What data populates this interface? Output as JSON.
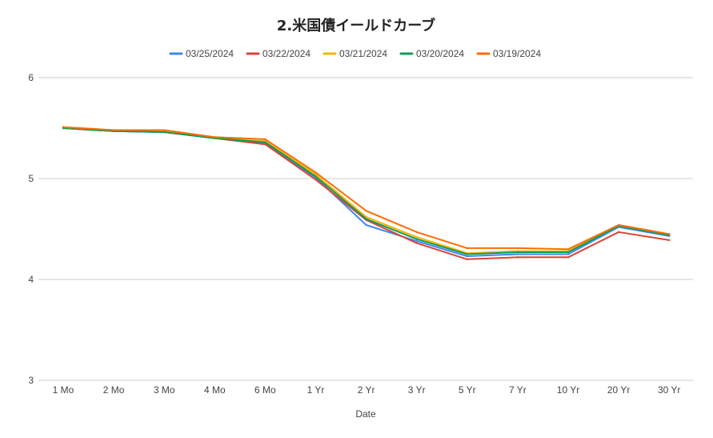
{
  "chart_data": {
    "type": "line",
    "title": "2.米国債イールドカーブ",
    "xlabel": "Date",
    "ylabel": "",
    "categories": [
      "1 Mo",
      "2 Mo",
      "3 Mo",
      "4 Mo",
      "6 Mo",
      "1 Yr",
      "2 Yr",
      "3 Yr",
      "5 Yr",
      "7 Yr",
      "10 Yr",
      "20 Yr",
      "30 Yr"
    ],
    "ylim": [
      3,
      6
    ],
    "yticks": [
      "3",
      "4",
      "5",
      "6"
    ],
    "grid": true,
    "legend_position": "top",
    "series": [
      {
        "name": "03/25/2024",
        "color": "#4285f4",
        "values": [
          5.5,
          5.47,
          5.46,
          5.4,
          5.35,
          5.01,
          4.54,
          4.38,
          4.23,
          4.25,
          4.25,
          4.52,
          4.43
        ]
      },
      {
        "name": "03/22/2024",
        "color": "#db4437",
        "values": [
          5.5,
          5.47,
          5.46,
          5.4,
          5.34,
          4.99,
          4.59,
          4.36,
          4.2,
          4.22,
          4.22,
          4.47,
          4.39
        ]
      },
      {
        "name": "03/21/2024",
        "color": "#f4b400",
        "values": [
          5.51,
          5.48,
          5.47,
          5.4,
          5.37,
          5.04,
          4.62,
          4.42,
          4.26,
          4.28,
          4.28,
          4.54,
          4.45
        ]
      },
      {
        "name": "03/20/2024",
        "color": "#0f9d58",
        "values": [
          5.5,
          5.47,
          5.46,
          5.4,
          5.36,
          5.02,
          4.6,
          4.4,
          4.25,
          4.27,
          4.27,
          4.53,
          4.44
        ]
      },
      {
        "name": "03/19/2024",
        "color": "#ff6d01",
        "values": [
          5.51,
          5.48,
          5.48,
          5.41,
          5.39,
          5.06,
          4.68,
          4.47,
          4.31,
          4.31,
          4.3,
          4.54,
          4.45
        ]
      }
    ]
  }
}
